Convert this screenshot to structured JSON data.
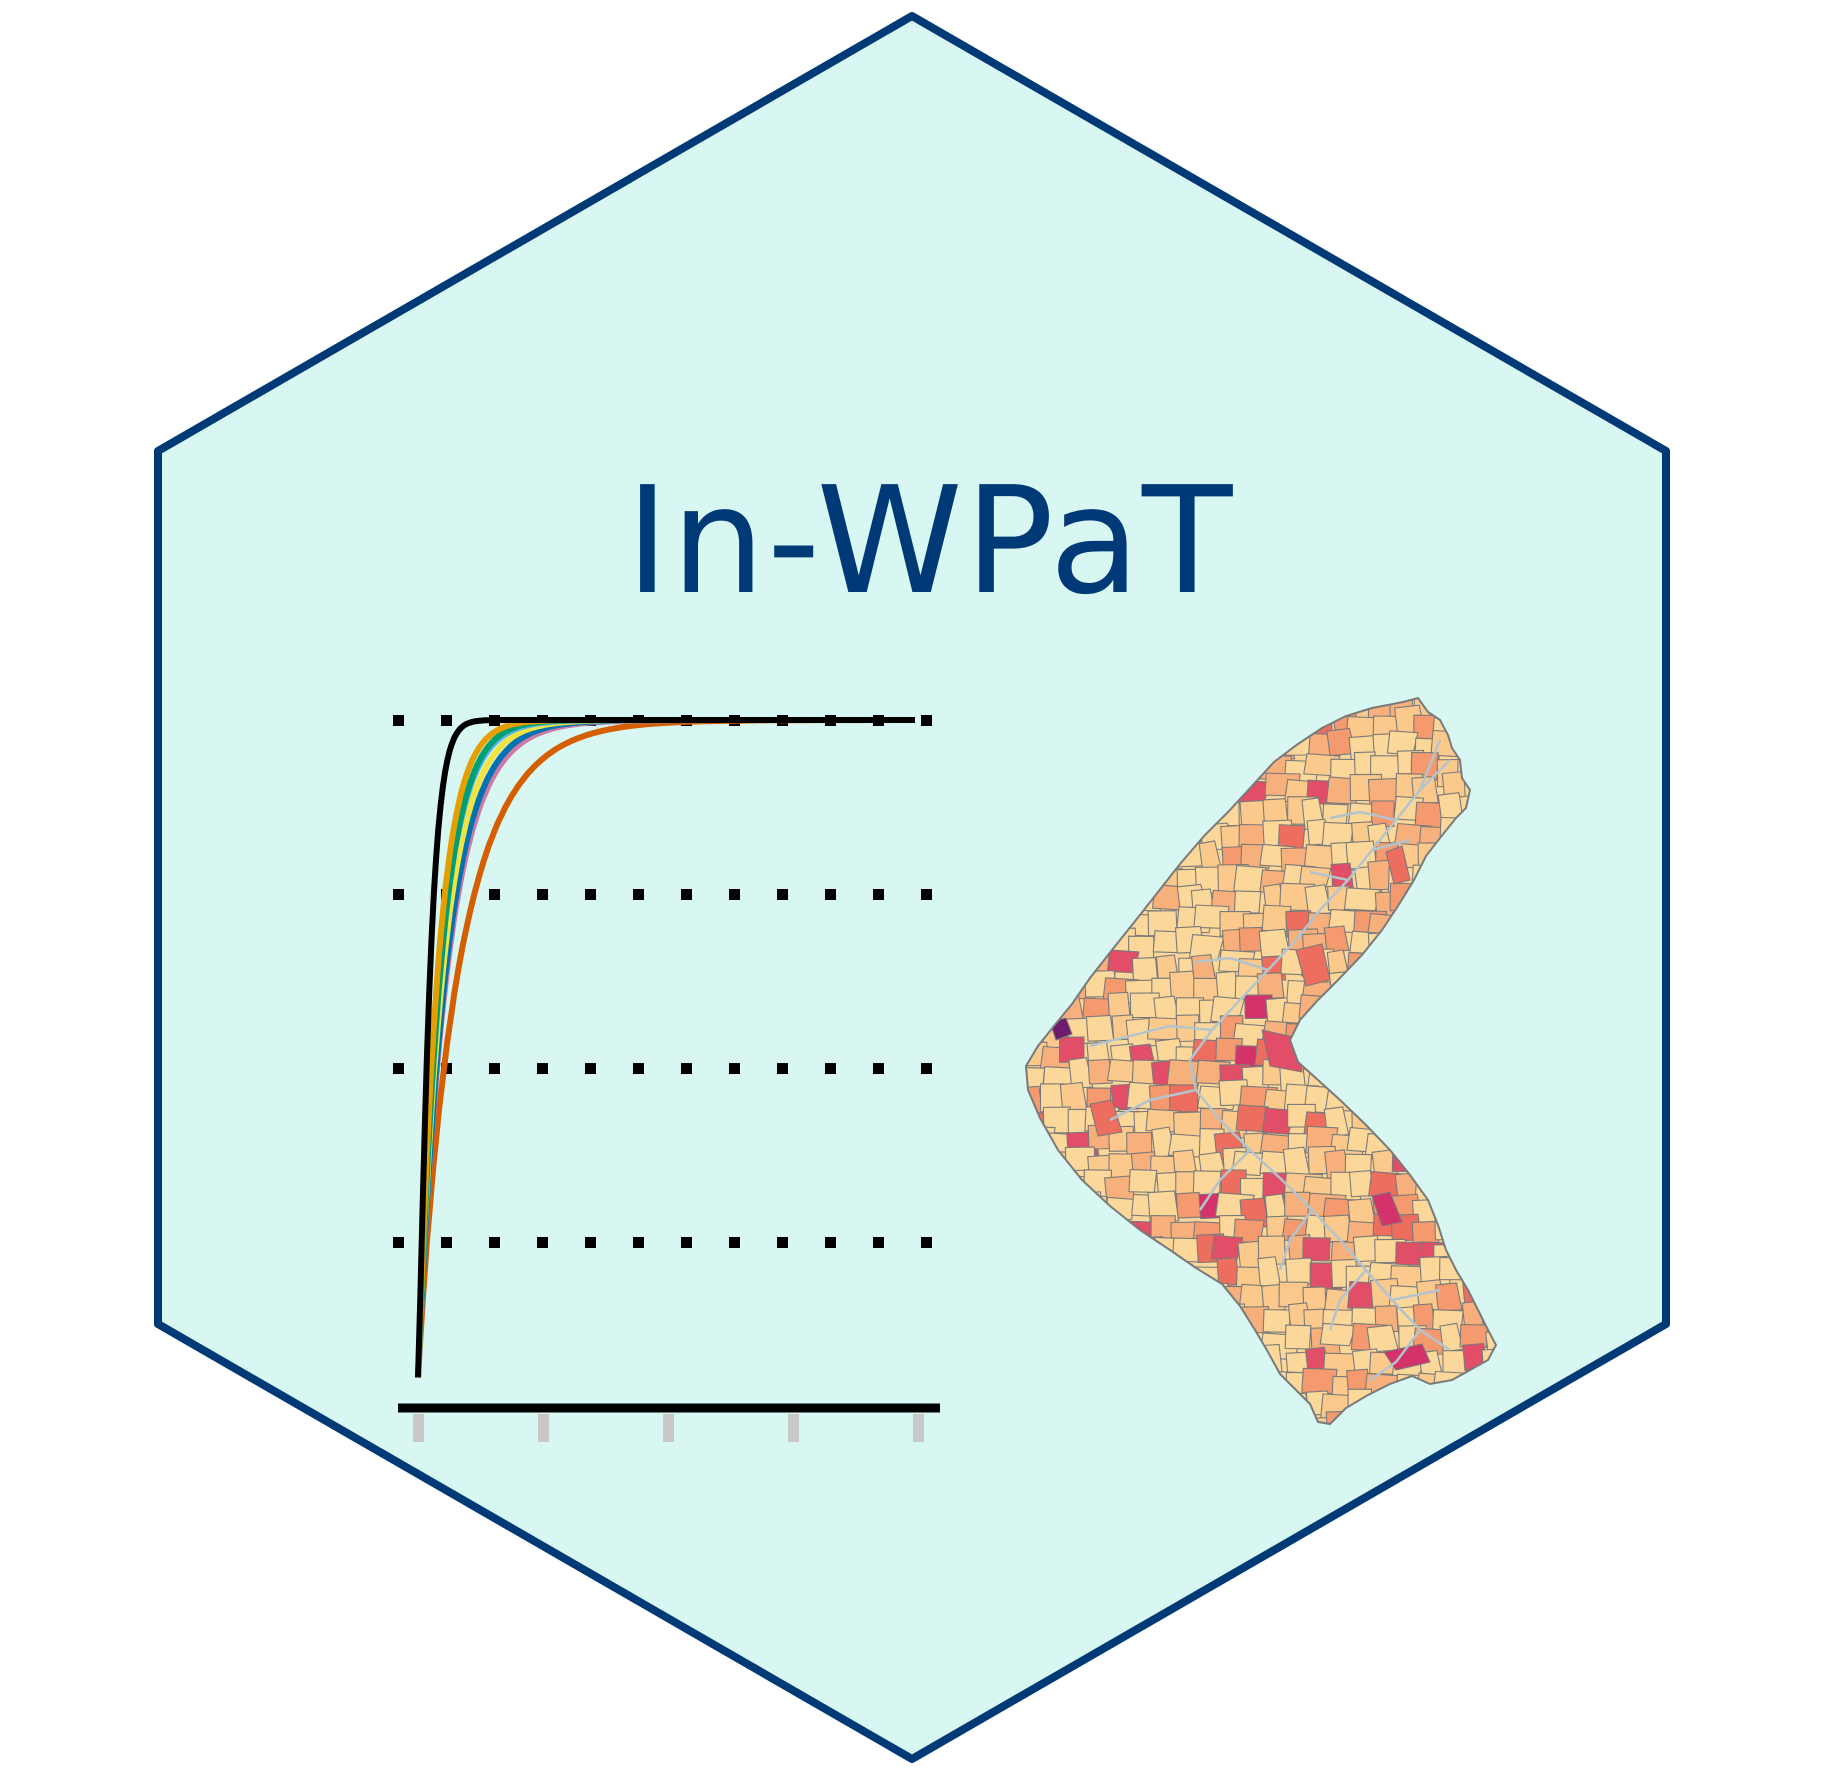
{
  "logo": {
    "title": "In-WPaT",
    "colors": {
      "hex_fill": "#d8f7f2",
      "hex_border": "#003a76",
      "title": "#003a76",
      "grid_dots": "#000000",
      "axis": "#000000",
      "ticks": "#c8c8c8",
      "map_outline": "#7a7a7a",
      "map_flow": "#b3c4cc"
    }
  },
  "chart_data": {
    "type": "line",
    "title": "",
    "xlabel": "",
    "ylabel": "",
    "x_ticks": 5,
    "y_gridlines": 4,
    "grid": "dotted-horizontal",
    "series": [
      {
        "color": "#000000",
        "rate": 0.012,
        "power": 1.2
      },
      {
        "color": "#e69f00",
        "rate": 0.035,
        "power": 1.05
      },
      {
        "color": "#009e73",
        "rate": 0.04,
        "power": 1.05
      },
      {
        "color": "#56b4e9",
        "rate": 0.046,
        "power": 1.0
      },
      {
        "color": "#f0e442",
        "rate": 0.052,
        "power": 1.0
      },
      {
        "color": "#0072b2",
        "rate": 0.058,
        "power": 1.0
      },
      {
        "color": "#cc79a7",
        "rate": 0.064,
        "power": 0.98
      },
      {
        "color": "#d55e00",
        "rate": 0.095,
        "power": 0.95
      }
    ]
  },
  "map": {
    "palette": [
      "#fcd79a",
      "#fbc98c",
      "#f7b07c",
      "#f49a6e",
      "#ed6e5e",
      "#e24d68",
      "#d4326a",
      "#6e1b6e"
    ]
  }
}
